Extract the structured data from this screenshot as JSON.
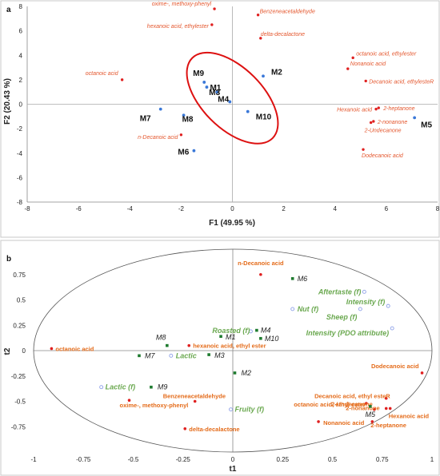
{
  "colors": {
    "variable": "#e02020",
    "variable_label_a": "#e4572e",
    "variable_label_b": "#e46c1b",
    "sample_a": "#3a78d8",
    "sample_b": "#1e7b2f",
    "attribute": "#6aa84f",
    "attribute_marker": "#8ea0e8",
    "ellipse_highlight": "#dd1111"
  },
  "chart_data": [
    {
      "type": "scatter",
      "panel_label": "a",
      "xlabel": "F1 (49.95 %)",
      "ylabel": "F2 (20.43 %)",
      "xlim": [
        -8,
        8
      ],
      "ylim": [
        -8,
        8
      ],
      "xticks": [
        -8,
        -6,
        -4,
        -2,
        0,
        2,
        4,
        6,
        8
      ],
      "yticks": [
        -8,
        -6,
        -4,
        -2,
        0,
        2,
        4,
        6,
        8
      ],
      "grid": false,
      "series": [
        {
          "name": "",
          "role": "variables",
          "points": [
            {
              "label": "oxime-, methoxy-phenyl",
              "x": -0.7,
              "y": 7.8
            },
            {
              "label": "hexanoic acid, ethylester",
              "x": -0.8,
              "y": 6.5
            },
            {
              "label": "Benzeneacetaldehyde",
              "x": 1.0,
              "y": 7.3
            },
            {
              "label": "delta-decalactone",
              "x": 1.1,
              "y": 5.4
            },
            {
              "label": "octanoic acid",
              "x": -4.3,
              "y": 2.0
            },
            {
              "label": "octanoic acid, ethylester",
              "x": 4.7,
              "y": 3.8
            },
            {
              "label": "Nonanoic acid",
              "x": 4.5,
              "y": 2.9
            },
            {
              "label": "Decanoic acid, ethylesteR",
              "x": 5.2,
              "y": 1.9
            },
            {
              "label": "Hexanoic acid",
              "x": 5.6,
              "y": -0.4
            },
            {
              "label": "2-heptanone",
              "x": 5.7,
              "y": -0.3
            },
            {
              "label": "2-nonanone",
              "x": 5.5,
              "y": -1.4
            },
            {
              "label": "2-Undecanone",
              "x": 5.4,
              "y": -1.5
            },
            {
              "label": "n-Decanoic acid",
              "x": -2.0,
              "y": -2.5
            },
            {
              "label": "Dodecanoic acid",
              "x": 5.1,
              "y": -3.7
            }
          ]
        },
        {
          "name": "",
          "role": "samples",
          "points": [
            {
              "label": "M9",
              "x": -1.1,
              "y": 1.8
            },
            {
              "label": "M1",
              "x": -1.0,
              "y": 1.4
            },
            {
              "label": "M3",
              "x": -0.6,
              "y": 1.0
            },
            {
              "label": "M4",
              "x": -0.1,
              "y": 0.2
            },
            {
              "label": "M2",
              "x": 1.2,
              "y": 2.3
            },
            {
              "label": "M7",
              "x": -2.8,
              "y": -0.4
            },
            {
              "label": "M8",
              "x": -1.9,
              "y": -0.9
            },
            {
              "label": "M10",
              "x": 0.6,
              "y": -0.6
            },
            {
              "label": "M5",
              "x": 7.1,
              "y": -1.1
            },
            {
              "label": "M6",
              "x": -1.5,
              "y": -3.8
            }
          ]
        }
      ]
    },
    {
      "type": "scatter",
      "panel_label": "b",
      "xlabel": "t1",
      "ylabel": "t2",
      "xlim": [
        -1,
        1
      ],
      "ylim": [
        -1,
        1
      ],
      "xticks": [
        -1,
        -0.75,
        -0.5,
        -0.25,
        0,
        0.25,
        0.5,
        0.75,
        1
      ],
      "yticks": [
        -0.75,
        -0.5,
        -0.25,
        0,
        0.25,
        0.5,
        0.75
      ],
      "grid": false,
      "series": [
        {
          "name": "",
          "role": "variables",
          "points": [
            {
              "label": "n-Decanoic acid",
              "x": 0.14,
              "y": 0.75
            },
            {
              "label": "octanoic acid",
              "x": -0.91,
              "y": 0.02
            },
            {
              "label": "hexanoic acid, ethyl ester",
              "x": -0.22,
              "y": 0.05
            },
            {
              "label": "Dodecanoic acid",
              "x": 0.95,
              "y": -0.22
            },
            {
              "label": "Decanoic acid, ethyl esteR",
              "x": 0.77,
              "y": -0.47
            },
            {
              "label": "octanoic acid, ethyl ester",
              "x": 0.67,
              "y": -0.52
            },
            {
              "label": "2-Undecanone",
              "x": 0.71,
              "y": -0.58
            },
            {
              "label": "2-nonanone",
              "x": 0.77,
              "y": -0.57
            },
            {
              "label": "Hexanoic acid",
              "x": 0.79,
              "y": -0.57
            },
            {
              "label": "Nonanoic acid",
              "x": 0.43,
              "y": -0.7
            },
            {
              "label": "2-heptanone",
              "x": 0.7,
              "y": -0.7
            },
            {
              "label": "oxime-, methoxy-phenyl",
              "x": -0.52,
              "y": -0.49
            },
            {
              "label": "Benzeneacetaldehyde",
              "x": -0.19,
              "y": -0.5
            },
            {
              "label": "delta-decalactone",
              "x": -0.24,
              "y": -0.77
            }
          ]
        },
        {
          "name": "",
          "role": "samples",
          "points": [
            {
              "label": "M6",
              "x": 0.3,
              "y": 0.71
            },
            {
              "label": "M4",
              "x": 0.12,
              "y": 0.2
            },
            {
              "label": "M1",
              "x": -0.06,
              "y": 0.14
            },
            {
              "label": "M10",
              "x": 0.14,
              "y": 0.12
            },
            {
              "label": "M8",
              "x": -0.33,
              "y": 0.05
            },
            {
              "label": "M7",
              "x": -0.47,
              "y": -0.05
            },
            {
              "label": "M3",
              "x": -0.12,
              "y": -0.04
            },
            {
              "label": "M2",
              "x": 0.01,
              "y": -0.22
            },
            {
              "label": "M9",
              "x": -0.41,
              "y": -0.36
            },
            {
              "label": "M5",
              "x": 0.69,
              "y": -0.55
            }
          ]
        },
        {
          "name": "",
          "role": "attributes",
          "points": [
            {
              "label": "Aftertaste (f)",
              "x": 0.66,
              "y": 0.58
            },
            {
              "label": "Nut (f)",
              "x": 0.3,
              "y": 0.41
            },
            {
              "label": "Intensity (f)",
              "x": 0.78,
              "y": 0.44
            },
            {
              "label": "Sheep (f)",
              "x": 0.64,
              "y": 0.41
            },
            {
              "label": "Roasted (f)",
              "x": 0.09,
              "y": 0.19
            },
            {
              "label": "Intensity (PDO attribute)",
              "x": 0.8,
              "y": 0.22
            },
            {
              "label": "Lactic",
              "x": -0.31,
              "y": -0.05
            },
            {
              "label": "Lactic (f)",
              "x": -0.66,
              "y": -0.36
            },
            {
              "label": "Fruity (f)",
              "x": -0.01,
              "y": -0.58
            }
          ]
        }
      ]
    }
  ]
}
